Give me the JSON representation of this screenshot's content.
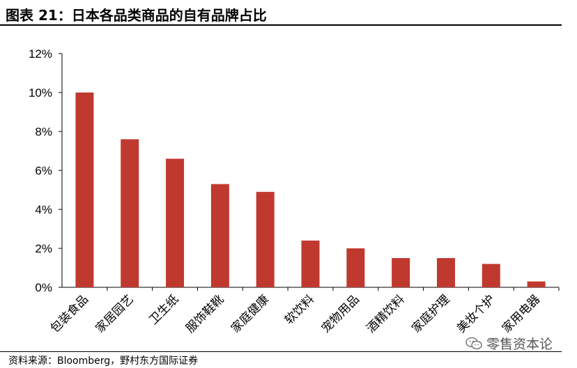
{
  "title": "图表 21：日本各品类商品的自有品牌占比",
  "source": "资料来源：Bloomberg，野村东方国际证券",
  "watermark": "零售资本论",
  "colors": {
    "bar": "#C0392F",
    "axis": "#000000"
  },
  "chart_data": {
    "type": "bar",
    "categories": [
      "包装食品",
      "家居园艺",
      "卫生纸",
      "服饰鞋靴",
      "家庭健康",
      "软饮料",
      "宠物用品",
      "酒精饮料",
      "家庭护理",
      "美妆个护",
      "家用电器"
    ],
    "values": [
      10.0,
      7.6,
      6.6,
      5.3,
      4.9,
      2.4,
      2.0,
      1.5,
      1.5,
      1.2,
      0.3
    ],
    "unit": "%",
    "ylim": [
      0,
      12
    ],
    "yticks": [
      0,
      2,
      4,
      6,
      8,
      10,
      12
    ],
    "ytick_labels": [
      "0%",
      "2%",
      "4%",
      "6%",
      "8%",
      "10%",
      "12%"
    ],
    "grid": false,
    "legend": "none"
  }
}
